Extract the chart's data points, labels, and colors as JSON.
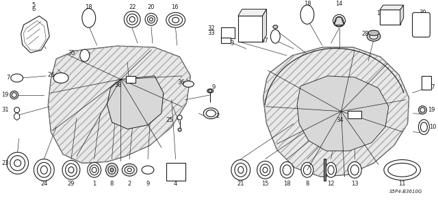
{
  "bg_color": "#ffffff",
  "lc": "#1a1a1a",
  "lw": 0.8,
  "watermark": "S5P4-B3610G",
  "fs": 6.0
}
